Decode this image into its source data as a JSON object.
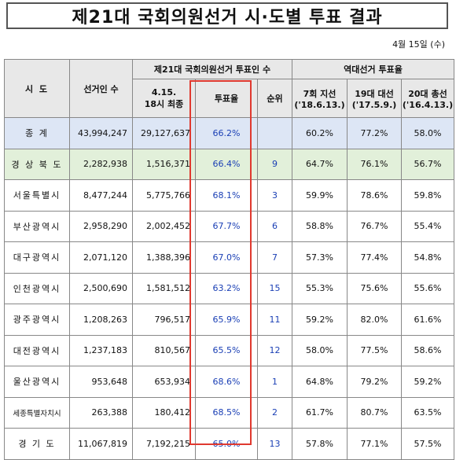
{
  "title": "제21대 국회의원선거 시·도별 투표 결과",
  "date": "4월 15일 (수)",
  "headers": {
    "region": "시 도",
    "voters": "선거인 수",
    "group_current": "제21대 국회의원선거 투표인 수",
    "voted": "4.15.\n18시 최종",
    "turnout": "투표율",
    "rank": "순위",
    "group_past": "역대선거 투표율",
    "past1": "7회 지선\n('18.6.13.)",
    "past2": "19대 대선\n('17.5.9.)",
    "past3": "20대 총선\n('16.4.13.)"
  },
  "rows": [
    {
      "region": "종 계",
      "voters": "43,994,247",
      "voted": "29,127,637",
      "turnout": "66.2%",
      "rank": "",
      "p1": "60.2%",
      "p2": "77.2%",
      "p3": "58.0%"
    },
    {
      "region": "경 상 북 도",
      "voters": "2,282,938",
      "voted": "1,516,371",
      "turnout": "66.4%",
      "rank": "9",
      "p1": "64.7%",
      "p2": "76.1%",
      "p3": "56.7%"
    },
    {
      "region": "서울특별시",
      "voters": "8,477,244",
      "voted": "5,775,766",
      "turnout": "68.1%",
      "rank": "3",
      "p1": "59.9%",
      "p2": "78.6%",
      "p3": "59.8%"
    },
    {
      "region": "부산광역시",
      "voters": "2,958,290",
      "voted": "2,002,452",
      "turnout": "67.7%",
      "rank": "6",
      "p1": "58.8%",
      "p2": "76.7%",
      "p3": "55.4%"
    },
    {
      "region": "대구광역시",
      "voters": "2,071,120",
      "voted": "1,388,396",
      "turnout": "67.0%",
      "rank": "7",
      "p1": "57.3%",
      "p2": "77.4%",
      "p3": "54.8%"
    },
    {
      "region": "인천광역시",
      "voters": "2,500,690",
      "voted": "1,581,512",
      "turnout": "63.2%",
      "rank": "15",
      "p1": "55.3%",
      "p2": "75.6%",
      "p3": "55.6%"
    },
    {
      "region": "광주광역시",
      "voters": "1,208,263",
      "voted": "796,517",
      "turnout": "65.9%",
      "rank": "11",
      "p1": "59.2%",
      "p2": "82.0%",
      "p3": "61.6%"
    },
    {
      "region": "대전광역시",
      "voters": "1,237,183",
      "voted": "810,567",
      "turnout": "65.5%",
      "rank": "12",
      "p1": "58.0%",
      "p2": "77.5%",
      "p3": "58.6%"
    },
    {
      "region": "울산광역시",
      "voters": "953,648",
      "voted": "653,934",
      "turnout": "68.6%",
      "rank": "1",
      "p1": "64.8%",
      "p2": "79.2%",
      "p3": "59.2%"
    },
    {
      "region": "세종특별자치시",
      "voters": "263,388",
      "voted": "180,412",
      "turnout": "68.5%",
      "rank": "2",
      "p1": "61.7%",
      "p2": "80.7%",
      "p3": "63.5%"
    },
    {
      "region": "경 기 도",
      "voters": "11,067,819",
      "voted": "7,192,215",
      "turnout": "65.0%",
      "rank": "13",
      "p1": "57.8%",
      "p2": "77.1%",
      "p3": "57.5%"
    }
  ]
}
